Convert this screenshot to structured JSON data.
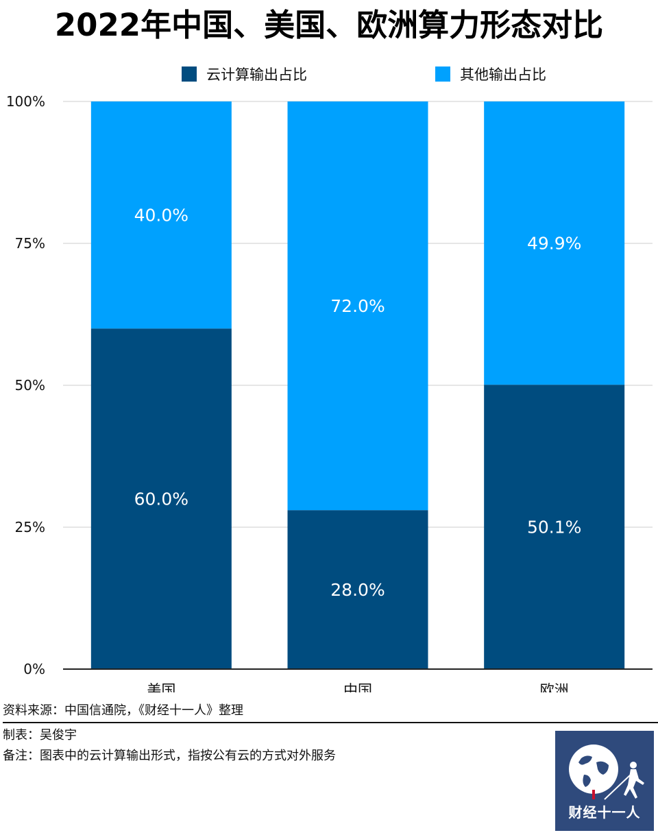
{
  "chart_data": {
    "type": "bar",
    "stacked": true,
    "title": "2022年中国、美国、欧洲算力形态对比",
    "categories": [
      "美国",
      "中国",
      "欧洲"
    ],
    "series": [
      {
        "name": "云计算输出占比",
        "values": [
          60.0,
          28.0,
          50.1
        ],
        "color": "#004c7f",
        "labels": [
          "60.0%",
          "28.0%",
          "50.1%"
        ]
      },
      {
        "name": "其他输出占比",
        "values": [
          40.0,
          72.0,
          49.9
        ],
        "color": "#00a1fe",
        "labels": [
          "40.0%",
          "72.0%",
          "49.9%"
        ]
      }
    ],
    "ylim": [
      0,
      100
    ],
    "yticks": [
      0,
      25,
      50,
      75,
      100
    ],
    "ytick_labels": [
      "0%",
      "25%",
      "50%",
      "75%",
      "100%"
    ],
    "grid": true,
    "legend": "top-center"
  },
  "notes": {
    "source": "资料来源：中国信通院，《财经十一人》整理",
    "maker": "制表：吴俊宇",
    "remark": "备注：图表中的云计算输出形式，指按公有云的方式对外服务"
  },
  "logo": {
    "text": "财经十一人",
    "background": "#2f4a7c"
  }
}
